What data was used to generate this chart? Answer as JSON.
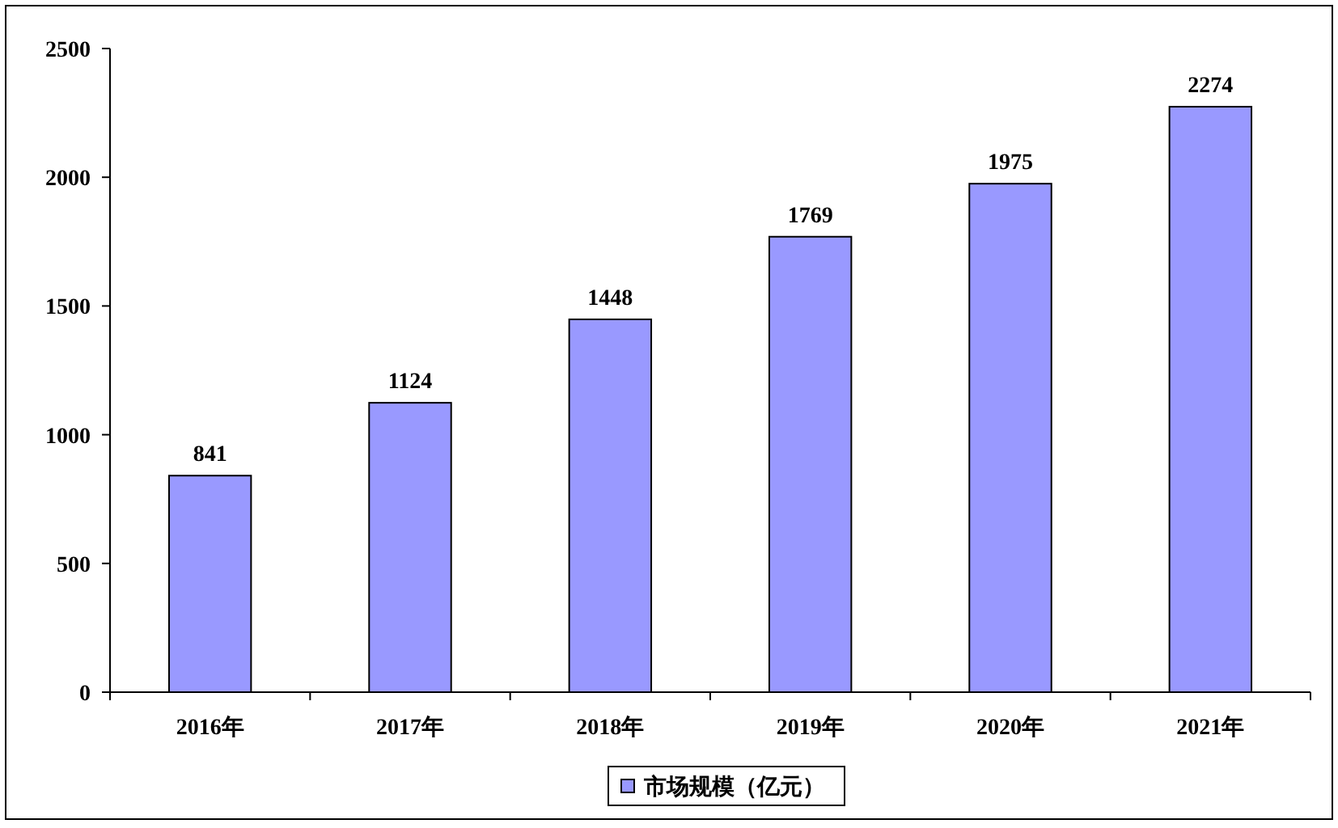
{
  "chart_data": {
    "type": "bar",
    "categories": [
      "2016年",
      "2017年",
      "2018年",
      "2019年",
      "2020年",
      "2021年"
    ],
    "series": [
      {
        "name": "市场规模（亿元）",
        "color": "#9999ff",
        "values": [
          841,
          1124,
          1448,
          1769,
          1975,
          2274
        ]
      }
    ],
    "ylim": [
      0,
      2500
    ],
    "yticks": [
      0,
      500,
      1000,
      1500,
      2000,
      2500
    ],
    "data_labels": true,
    "legend": "bottom"
  }
}
